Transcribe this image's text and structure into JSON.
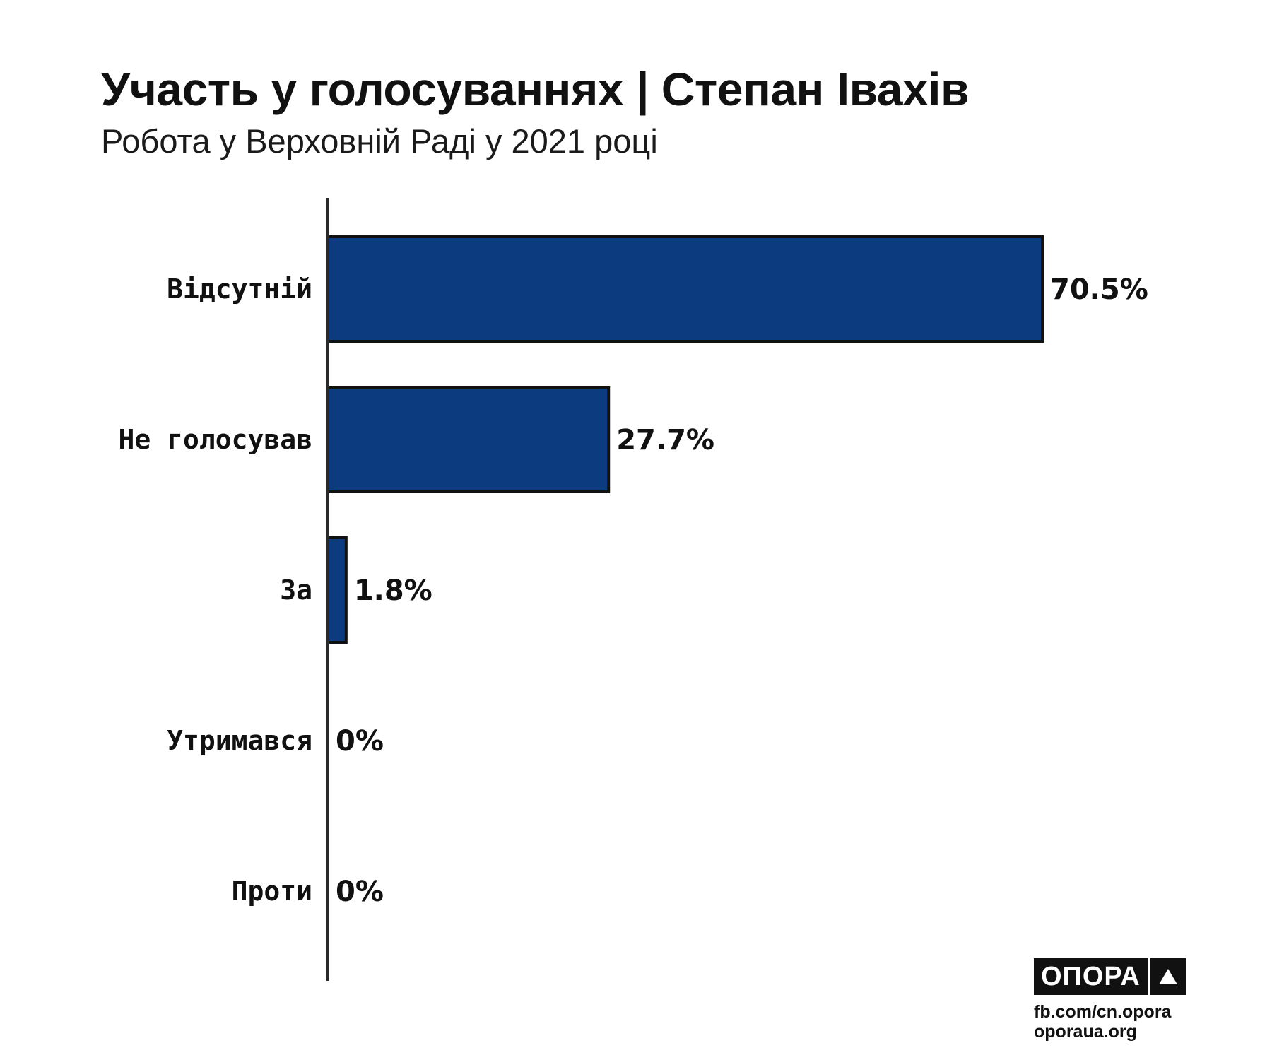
{
  "header": {
    "title": "Участь у голосуваннях | Степан Івахів",
    "subtitle": "Робота у Верховній Раді у 2021 році"
  },
  "chart_data": {
    "type": "bar",
    "orientation": "horizontal",
    "title": "Участь у голосуваннях | Степан Івахів",
    "subtitle": "Робота у Верховній Раді у 2021 році",
    "categories": [
      "Відсутній",
      "Не голосував",
      "За",
      "Утримався",
      "Проти"
    ],
    "values": [
      70.5,
      27.7,
      1.8,
      0,
      0
    ],
    "value_labels": [
      "70.5%",
      "27.7%",
      "1.8%",
      "0%",
      "0%"
    ],
    "unit": "%",
    "xlim": [
      0,
      70.5
    ],
    "grid": false,
    "legend": "none",
    "bar_color": "#0d3b80",
    "bar_outline": "#111111"
  },
  "footer": {
    "logo_text": "ОПОРА",
    "logo_icon": "triangle-icon",
    "links": [
      "fb.com/cn.opora",
      "oporaua.org"
    ]
  }
}
